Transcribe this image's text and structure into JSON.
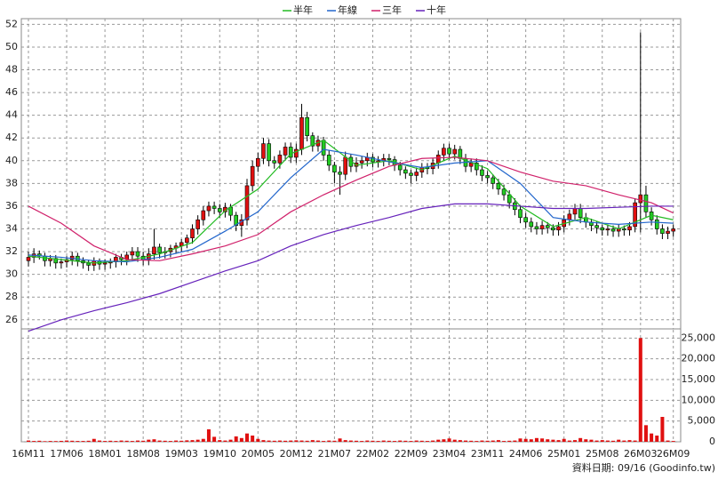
{
  "chart_data": {
    "type": "candlestick",
    "legend": [
      "半年",
      "年線",
      "三年",
      "十年"
    ],
    "categories": [
      "16M11",
      null,
      null,
      null,
      null,
      null,
      null,
      "17M06",
      null,
      null,
      null,
      null,
      null,
      null,
      "18M01",
      null,
      null,
      null,
      null,
      null,
      null,
      "18M08",
      null,
      null,
      null,
      null,
      null,
      null,
      "19M03",
      null,
      null,
      null,
      null,
      null,
      null,
      "19M10",
      null,
      null,
      null,
      null,
      null,
      null,
      "20M05",
      null,
      null,
      null,
      null,
      null,
      null,
      "20M12",
      null,
      null,
      null,
      null,
      null,
      null,
      "21M07",
      null,
      null,
      null,
      null,
      null,
      null,
      "22M02",
      null,
      null,
      null,
      null,
      null,
      null,
      "22M09",
      null,
      null,
      null,
      null,
      null,
      null,
      "23M04",
      null,
      null,
      null,
      null,
      null,
      null,
      "23M11",
      null,
      null,
      null,
      null,
      null,
      null,
      "24M06",
      null,
      null,
      null,
      null,
      null,
      null,
      "25M01",
      null,
      null,
      null,
      null,
      null,
      null,
      "25M08",
      null,
      null,
      null,
      null,
      null,
      null,
      "26M03",
      null,
      null,
      null,
      null,
      null,
      "26M09"
    ],
    "open": [
      31.2,
      31.5,
      31.8,
      31.6,
      31.2,
      31.4,
      31.0,
      31.1,
      31.3,
      31.6,
      31.2,
      31.0,
      30.8,
      31.2,
      30.9,
      31.0,
      31.1,
      31.5,
      31.3,
      31.7,
      32.0,
      31.6,
      31.3,
      31.8,
      32.4,
      31.9,
      32.0,
      32.3,
      32.5,
      32.8,
      33.2,
      34.0,
      34.8,
      35.6,
      36.0,
      35.8,
      35.5,
      35.9,
      35.2,
      34.3,
      34.8,
      37.8,
      39.5,
      40.2,
      41.5,
      40.0,
      39.8,
      40.5,
      41.2,
      40.3,
      41.0,
      43.8,
      42.2,
      41.3,
      41.8,
      40.5,
      39.6,
      39.0,
      38.8,
      40.3,
      39.5,
      39.8,
      40.0,
      40.3,
      39.9,
      40.0,
      40.2,
      40.1,
      39.6,
      39.2,
      38.9,
      38.7,
      39.0,
      39.4,
      39.3,
      39.8,
      40.5,
      41.1,
      40.6,
      41.0,
      40.2,
      39.5,
      39.8,
      39.2,
      38.7,
      38.5,
      38.0,
      37.5,
      37.0,
      36.3,
      35.7,
      35.0,
      34.6,
      34.2,
      34.0,
      34.3,
      34.1,
      33.9,
      34.2,
      34.8,
      35.3,
      35.8,
      35.0,
      34.6,
      34.3,
      34.1,
      33.9,
      34.0,
      33.8,
      34.0,
      33.9,
      34.2,
      36.3,
      37.0,
      35.5,
      34.8,
      34.0,
      33.6,
      33.8
    ],
    "close": [
      31.5,
      31.8,
      31.6,
      31.2,
      31.4,
      31.0,
      31.1,
      31.3,
      31.6,
      31.2,
      31.0,
      30.8,
      31.2,
      30.9,
      31.0,
      31.1,
      31.5,
      31.3,
      31.7,
      32.0,
      31.6,
      31.3,
      31.8,
      32.4,
      31.9,
      32.0,
      32.3,
      32.5,
      32.8,
      33.2,
      34.0,
      34.8,
      35.6,
      36.0,
      35.8,
      35.5,
      35.9,
      35.2,
      34.3,
      34.8,
      37.8,
      39.5,
      40.2,
      41.5,
      40.0,
      39.8,
      40.5,
      41.2,
      40.3,
      41.0,
      43.8,
      42.2,
      41.3,
      41.8,
      40.5,
      39.6,
      39.0,
      38.8,
      40.3,
      39.5,
      39.8,
      40.0,
      40.3,
      39.9,
      40.0,
      40.2,
      40.1,
      39.6,
      39.2,
      38.9,
      38.7,
      39.0,
      39.4,
      39.3,
      39.8,
      40.5,
      41.1,
      40.6,
      41.0,
      40.2,
      39.5,
      39.8,
      39.2,
      38.7,
      38.5,
      38.0,
      37.5,
      37.0,
      36.3,
      35.7,
      35.0,
      34.6,
      34.2,
      34.0,
      34.3,
      34.1,
      33.9,
      34.2,
      34.8,
      35.3,
      35.8,
      35.0,
      34.6,
      34.3,
      34.1,
      33.9,
      34.0,
      33.8,
      34.0,
      33.9,
      34.2,
      36.3,
      37.0,
      35.5,
      34.8,
      34.0,
      33.6,
      33.8,
      34.0
    ],
    "high": [
      32.0,
      32.3,
      32.1,
      31.9,
      31.7,
      31.7,
      31.4,
      31.6,
      32.0,
      31.9,
      31.5,
      31.3,
      31.5,
      31.4,
      31.3,
      31.4,
      31.8,
      31.8,
      32.0,
      32.4,
      32.4,
      32.0,
      32.3,
      34.0,
      32.7,
      32.4,
      32.6,
      32.8,
      33.1,
      33.5,
      34.4,
      35.2,
      36.0,
      36.4,
      36.4,
      36.2,
      36.3,
      36.2,
      35.5,
      35.3,
      38.4,
      40.0,
      40.7,
      42.0,
      41.9,
      40.4,
      40.9,
      41.6,
      41.6,
      41.5,
      45.0,
      44.3,
      42.5,
      42.2,
      42.1,
      40.9,
      39.9,
      39.5,
      40.8,
      40.6,
      40.3,
      40.4,
      40.7,
      40.6,
      40.4,
      40.6,
      40.6,
      40.4,
      39.9,
      39.5,
      39.2,
      39.4,
      39.8,
      39.8,
      40.2,
      40.9,
      41.5,
      41.5,
      41.4,
      41.3,
      40.6,
      40.2,
      40.2,
      39.6,
      39.1,
      38.8,
      38.4,
      37.9,
      37.4,
      36.7,
      36.1,
      35.4,
      35.0,
      34.6,
      34.7,
      34.6,
      34.4,
      34.6,
      35.2,
      35.7,
      36.2,
      36.2,
      35.4,
      34.9,
      34.7,
      34.4,
      34.4,
      34.3,
      34.4,
      34.3,
      34.6,
      36.7,
      51.3,
      37.8,
      35.9,
      35.2,
      34.4,
      34.2,
      34.4
    ],
    "low": [
      30.7,
      31.0,
      31.3,
      30.7,
      30.7,
      30.5,
      30.5,
      30.6,
      30.8,
      30.7,
      30.5,
      30.3,
      30.3,
      30.4,
      30.4,
      30.5,
      30.6,
      30.8,
      30.8,
      31.2,
      31.1,
      30.8,
      30.8,
      31.3,
      31.4,
      31.4,
      31.5,
      31.8,
      32.0,
      32.3,
      32.7,
      33.5,
      34.3,
      35.1,
      35.3,
      35.0,
      35.0,
      34.7,
      33.8,
      33.3,
      34.3,
      37.3,
      39.0,
      39.7,
      39.5,
      39.3,
      39.3,
      40.0,
      39.8,
      39.8,
      40.5,
      41.7,
      40.8,
      40.8,
      40.0,
      39.1,
      38.0,
      37.0,
      38.3,
      39.0,
      39.0,
      39.3,
      39.5,
      39.4,
      39.4,
      39.5,
      39.6,
      39.1,
      38.7,
      38.4,
      38.0,
      38.2,
      38.5,
      38.8,
      38.8,
      39.3,
      40.0,
      40.1,
      40.1,
      39.7,
      39.0,
      39.0,
      38.7,
      38.2,
      38.0,
      37.5,
      37.0,
      36.5,
      35.8,
      35.2,
      34.5,
      34.1,
      33.7,
      33.5,
      33.5,
      33.6,
      33.4,
      33.4,
      33.7,
      34.3,
      34.8,
      34.5,
      34.1,
      33.8,
      33.6,
      33.4,
      33.4,
      33.3,
      33.3,
      33.4,
      33.4,
      33.7,
      33.7,
      35.0,
      34.3,
      33.5,
      33.1,
      33.1,
      33.3
    ],
    "volume": [
      300,
      200,
      250,
      150,
      200,
      180,
      220,
      300,
      250,
      200,
      200,
      250,
      700,
      300,
      200,
      250,
      200,
      300,
      250,
      200,
      300,
      250,
      500,
      600,
      300,
      250,
      200,
      300,
      250,
      350,
      400,
      500,
      700,
      3000,
      1200,
      400,
      300,
      500,
      1300,
      900,
      2000,
      1500,
      700,
      400,
      300,
      250,
      300,
      250,
      300,
      350,
      300,
      250,
      400,
      300,
      200,
      300,
      250,
      800,
      400,
      300,
      250,
      200,
      300,
      250,
      200,
      300,
      250,
      200,
      300,
      250,
      200,
      300,
      250,
      200,
      300,
      500,
      600,
      800,
      500,
      400,
      300,
      250,
      200,
      300,
      250,
      300,
      400,
      200,
      250,
      300,
      800,
      700,
      600,
      900,
      800,
      600,
      500,
      400,
      700,
      300,
      400,
      900,
      600,
      500,
      300,
      400,
      300,
      250,
      500,
      300,
      400,
      300,
      25000,
      4000,
      2000,
      1500,
      6000,
      300,
      200
    ],
    "series": [
      {
        "name": "半年",
        "color": "#22bb22",
        "x": [
          0,
          6,
          12,
          18,
          24,
          30,
          36,
          42,
          48,
          54,
          60,
          66,
          72,
          78,
          84,
          90,
          96,
          102,
          108,
          114,
          118
        ],
        "values": [
          31.6,
          31.3,
          31.0,
          31.2,
          31.8,
          32.8,
          35.6,
          37.5,
          40.6,
          41.8,
          39.6,
          40.0,
          39.2,
          40.4,
          39.3,
          36.0,
          34.2,
          35.0,
          34.0,
          35.2,
          34.8
        ]
      },
      {
        "name": "年線",
        "color": "#2266cc",
        "x": [
          0,
          6,
          12,
          18,
          24,
          30,
          36,
          42,
          48,
          54,
          60,
          66,
          72,
          78,
          84,
          90,
          96,
          102,
          108,
          114,
          118
        ],
        "values": [
          31.7,
          31.5,
          31.2,
          31.1,
          31.5,
          32.2,
          33.8,
          35.5,
          38.5,
          41.0,
          40.5,
          39.9,
          39.4,
          39.8,
          40.0,
          38.0,
          35.0,
          34.6,
          34.4,
          34.6,
          34.5
        ]
      },
      {
        "name": "三年",
        "color": "#d0206a",
        "x": [
          0,
          6,
          12,
          18,
          24,
          30,
          36,
          42,
          48,
          54,
          60,
          66,
          72,
          78,
          84,
          90,
          96,
          102,
          108,
          114,
          118
        ],
        "values": [
          36.0,
          34.5,
          32.5,
          31.3,
          31.2,
          31.8,
          32.5,
          33.5,
          35.5,
          37.0,
          38.3,
          39.5,
          40.2,
          40.3,
          40.0,
          39.0,
          38.2,
          37.8,
          37.0,
          36.3,
          35.4
        ]
      },
      {
        "name": "十年",
        "color": "#6622bb",
        "x": [
          0,
          6,
          12,
          18,
          24,
          30,
          36,
          42,
          48,
          54,
          60,
          66,
          72,
          78,
          84,
          90,
          96,
          102,
          108,
          114,
          118
        ],
        "values": [
          25.0,
          26.0,
          26.8,
          27.5,
          28.3,
          29.3,
          30.3,
          31.2,
          32.5,
          33.5,
          34.3,
          35.0,
          35.8,
          36.2,
          36.2,
          36.0,
          35.8,
          35.8,
          35.9,
          36.0,
          36.0
        ]
      }
    ],
    "up_color": "#e01010",
    "down_color": "#22cc22",
    "volume_color": "#e01010",
    "ylim": [
      25.2,
      52.5
    ],
    "yticks": [
      26,
      28,
      30,
      32,
      34,
      36,
      38,
      40,
      42,
      44,
      46,
      48,
      50,
      52
    ],
    "y2lim": [
      0,
      27000
    ],
    "y2ticks": [
      0,
      {
        "value": 5000,
        "label": "5,000"
      },
      {
        "value": 10000,
        "label": "10,000"
      },
      {
        "value": 15000,
        "label": "15,000"
      },
      {
        "value": 20000,
        "label": "20,000"
      },
      {
        "value": 25000,
        "label": "25,000"
      }
    ],
    "grid": true,
    "footnote": "資料日期: 09/16 (Goodinfo.tw)"
  }
}
